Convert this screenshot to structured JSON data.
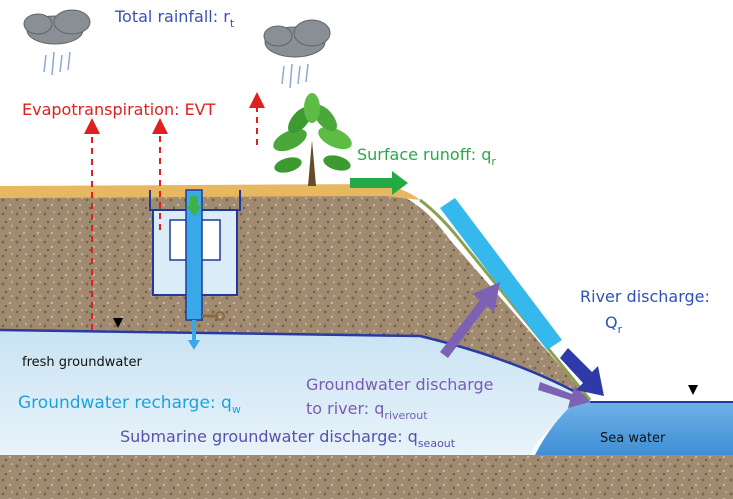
{
  "labels": {
    "rainfall": {
      "text": "Total rainfall: r",
      "sub": "t"
    },
    "evt": "Evapotranspiration: EVT",
    "runoff": {
      "text": "Surface runoff: q",
      "sub": "r"
    },
    "river": {
      "line1": "River discharge:",
      "text": "Q",
      "sub": "r"
    },
    "fresh": "fresh groundwater",
    "recharge": {
      "text": "Groundwater recharge: q",
      "sub": "w"
    },
    "riverout": {
      "line1": "Groundwater discharge",
      "text": "to river: q",
      "sub": "riverout"
    },
    "seaout": {
      "text": "Submarine groundwater discharge: q",
      "sub": "seaout"
    },
    "sea": "Sea water"
  }
}
